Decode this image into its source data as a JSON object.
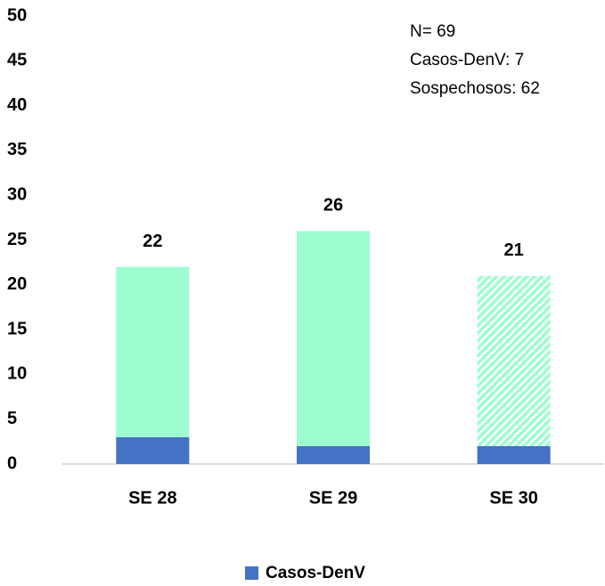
{
  "chart_data": {
    "type": "stacked_bar",
    "categories": [
      "SE 28",
      "SE 29",
      "SE 30"
    ],
    "series": [
      {
        "name": "Casos-DenV",
        "color": "#4472c4",
        "values": [
          3,
          2,
          2
        ]
      },
      {
        "color": "#9dfdd0",
        "values": [
          19,
          24,
          19
        ]
      }
    ],
    "totals": [
      22,
      26,
      21
    ],
    "hatched": [
      false,
      false,
      true
    ],
    "annotations": [
      "N= 69",
      "Casos-DenV: 7",
      "Sospechosos: 62"
    ],
    "ylim": [
      0,
      50
    ],
    "yticks": [
      0,
      5,
      10,
      15,
      20,
      25,
      30,
      35,
      40,
      45,
      50
    ],
    "grid": false,
    "legend": "bottom"
  }
}
